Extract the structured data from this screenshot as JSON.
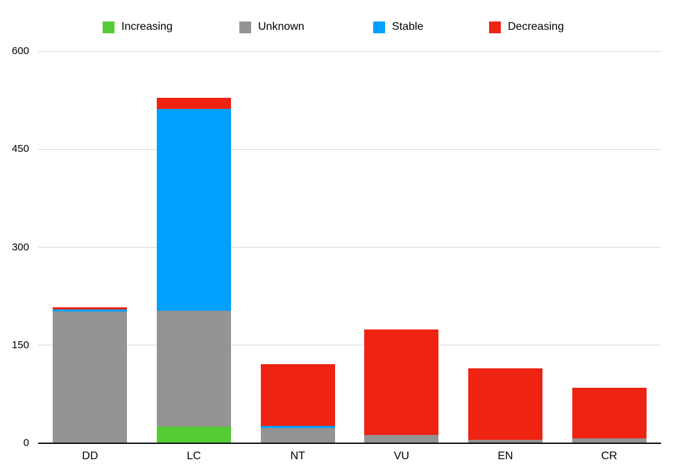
{
  "chart_data": {
    "type": "bar",
    "subtype": "stacked",
    "title": "",
    "xlabel": "",
    "ylabel": "",
    "categories": [
      "DD",
      "LC",
      "NT",
      "VU",
      "EN",
      "CR"
    ],
    "series": [
      {
        "name": "Increasing",
        "color": "#55cc33",
        "values": [
          0,
          25,
          0,
          0,
          0,
          0
        ]
      },
      {
        "name": "Unknown",
        "color": "#949494",
        "values": [
          202,
          178,
          23,
          13,
          5,
          7
        ]
      },
      {
        "name": "Stable",
        "color": "#00a0ff",
        "values": [
          3,
          309,
          4,
          0,
          0,
          0
        ]
      },
      {
        "name": "Decreasing",
        "color": "#ee2312",
        "values": [
          3,
          17,
          94,
          161,
          110,
          78
        ]
      }
    ],
    "stack_order_bottom_to_top": [
      "Increasing",
      "Unknown",
      "Stable",
      "Decreasing"
    ],
    "ylim": [
      0,
      600
    ],
    "y_ticks": [
      0,
      150,
      300,
      450,
      600
    ],
    "grid": true,
    "legend_position": "top",
    "gridline_color": "#d9d9d9",
    "axis_line_color": "#111111",
    "text_color": "#000000"
  }
}
